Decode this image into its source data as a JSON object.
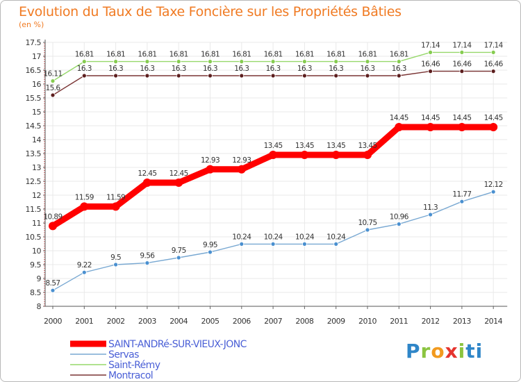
{
  "chart_data": {
    "type": "line",
    "title": "Evolution du Taux de Taxe Foncière sur les Propriétés Bâties",
    "ylabel": "(en %)",
    "xlabel": "",
    "ylim": [
      8,
      17.5
    ],
    "yticks": [
      "8",
      "8.5",
      "9",
      "9.5",
      "10",
      "10.5",
      "11",
      "11.5",
      "12",
      "12.5",
      "13",
      "13.5",
      "14",
      "14.5",
      "15",
      "15.5",
      "16",
      "16.5",
      "17",
      "17.5"
    ],
    "x": [
      "2000",
      "2001",
      "2002",
      "2003",
      "2004",
      "2005",
      "2006",
      "2007",
      "2008",
      "2009",
      "2010",
      "2011",
      "2012",
      "2013",
      "2014"
    ],
    "series": [
      {
        "name": "Saint-Rémy",
        "color": "#96d86a",
        "marker": "#86cc50",
        "values": [
          16.11,
          16.81,
          16.81,
          16.81,
          16.81,
          16.81,
          16.81,
          16.81,
          16.81,
          16.81,
          16.81,
          16.81,
          17.14,
          17.14,
          17.14
        ],
        "labels": [
          "16.11",
          "16.81",
          "16.81",
          "16.81",
          "16.81",
          "16.81",
          "16.81",
          "16.81",
          "16.81",
          "16.81",
          "16.81",
          "16.81",
          "17.14",
          "17.14",
          "17.14"
        ]
      },
      {
        "name": "Montracol",
        "color": "#7a3434",
        "marker": "#5c1e1e",
        "values": [
          15.6,
          16.3,
          16.3,
          16.3,
          16.3,
          16.3,
          16.3,
          16.3,
          16.3,
          16.3,
          16.3,
          16.3,
          16.46,
          16.46,
          16.46
        ],
        "labels": [
          "15.6",
          "16.3",
          "16.3",
          "16.3",
          "16.3",
          "16.3",
          "16.3",
          "16.3",
          "16.3",
          "16.3",
          "16.3",
          "16.3",
          "16.46",
          "16.46",
          "16.46"
        ]
      },
      {
        "name": "SAINT-ANDRé-SUR-VIEUX-JONC",
        "color": "#ff0000",
        "marker": "#ff0000",
        "values": [
          10.89,
          11.59,
          11.59,
          12.45,
          12.45,
          12.93,
          12.93,
          13.45,
          13.45,
          13.45,
          13.45,
          14.45,
          14.45,
          14.45,
          14.45
        ],
        "labels": [
          "10.89",
          "11.59",
          "11.59",
          "12.45",
          "12.45",
          "12.93",
          "12.93",
          "13.45",
          "13.45",
          "13.45",
          "13.45",
          "14.45",
          "14.45",
          "14.45",
          "14.45"
        ]
      },
      {
        "name": "Servas",
        "color": "#78a8d2",
        "marker": "#4a90d0",
        "values": [
          8.57,
          9.22,
          9.5,
          9.56,
          9.75,
          9.95,
          10.24,
          10.24,
          10.24,
          10.24,
          10.75,
          10.96,
          11.3,
          11.77,
          12.12
        ],
        "labels": [
          "8.57",
          "9.22",
          "9.5",
          "9.56",
          "9.75",
          "9.95",
          "10.24",
          "10.24",
          "10.24",
          "10.24",
          "10.75",
          "10.96",
          "11.3",
          "11.77",
          "12.12"
        ]
      }
    ],
    "legend": {
      "position": "bottom-left",
      "entries": [
        "SAINT-ANDRé-SUR-VIEUX-JONC",
        "Servas",
        "Saint-Rémy",
        "Montracol"
      ]
    }
  },
  "brand": {
    "letters": [
      "P",
      "r",
      "o",
      "x",
      "i",
      "t",
      "i"
    ]
  }
}
